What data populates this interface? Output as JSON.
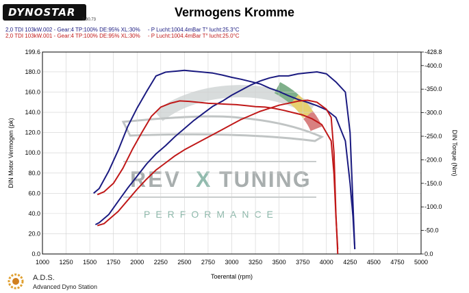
{
  "brand": {
    "logo_text": "DYNOSTAR",
    "version": "2.30.73"
  },
  "runs": [
    "2,0 TDI 103kW.002 - Gear:4 TP:100% DE:95% XL:30%     - P Lucht:1004.4mBar T° lucht:25.3°C",
    "2,0 TDI 103kW.001 - Gear:4 TP:100% DE:95% XL:30%     - P Lucht:1004.4mBar T° lucht:25.0°C"
  ],
  "watermark": {
    "main_left": "REV",
    "main_x": "X",
    "main_right": "TUNING",
    "sub": "PERFORMANCE"
  },
  "footer": {
    "name": "A.D.S.",
    "subtitle": "Advanced Dyno Station"
  },
  "colors": {
    "run1": "#1a1a80",
    "run2": "#c01818",
    "grid": "#d0d0d0",
    "watermark": "#9aa0a0"
  },
  "chart_data": {
    "type": "line",
    "title": "Vermogens Kromme",
    "xlabel": "Toerental (rpm)",
    "ylabel": "DIN Motor Vermogen (pk)",
    "y2label": "DIN Torque (Nm)",
    "xlim": [
      1000,
      5000
    ],
    "ylim": [
      0,
      199.6
    ],
    "y2lim": [
      0,
      428.8
    ],
    "x_ticks": [
      "1000",
      "1250",
      "1500",
      "1750",
      "2000",
      "2250",
      "2500",
      "2750",
      "3000",
      "3250",
      "3500",
      "3750",
      "4000",
      "4250",
      "4500",
      "4750",
      "5000"
    ],
    "y_ticks": [
      "0.0",
      "20.0",
      "40.0",
      "60.0",
      "80.0",
      "100.0",
      "120.0",
      "140.0",
      "160.0",
      "180.0",
      "199.6"
    ],
    "y2_ticks": [
      "0.0",
      "-50.0",
      "-100.0",
      "-150.0",
      "-200.0",
      "-250.0",
      "-300.0",
      "-350.0",
      "-400.0",
      "-428.8"
    ],
    "grid": true,
    "series": [
      {
        "name": "2,0 TDI 103kW.002",
        "measure": "power",
        "axis": "left",
        "color": "#1a1a80",
        "x": [
          1560,
          1600,
          1700,
          1800,
          1900,
          2000,
          2100,
          2200,
          2300,
          2400,
          2500,
          2600,
          2700,
          2800,
          2900,
          3000,
          3100,
          3200,
          3300,
          3400,
          3500,
          3600,
          3700,
          3800,
          3900,
          4000,
          4100,
          4200,
          4250,
          4280,
          4300
        ],
        "y": [
          29,
          31,
          39,
          52,
          65,
          77,
          89,
          99,
          107,
          116,
          124,
          132,
          139,
          146,
          151,
          157,
          162,
          167,
          171,
          174,
          176,
          176,
          178,
          179,
          180,
          178,
          170,
          160,
          120,
          50,
          5
        ]
      },
      {
        "name": "2,0 TDI 103kW.002",
        "measure": "torque",
        "axis": "right",
        "color": "#1a1a80",
        "x": [
          1540,
          1600,
          1700,
          1800,
          1900,
          2000,
          2100,
          2200,
          2300,
          2400,
          2500,
          2600,
          2700,
          2800,
          2900,
          3000,
          3100,
          3200,
          3300,
          3400,
          3500,
          3600,
          3700,
          3800,
          3900,
          4000,
          4100,
          4200,
          4250,
          4280,
          4300
        ],
        "y": [
          129,
          139,
          176,
          220,
          270,
          310,
          345,
          378,
          386,
          388,
          390,
          388,
          386,
          384,
          380,
          375,
          371,
          366,
          361,
          352,
          345,
          336,
          328,
          322,
          315,
          306,
          290,
          240,
          150,
          80,
          10
        ]
      },
      {
        "name": "2,0 TDI 103kW.001",
        "measure": "power",
        "axis": "left",
        "color": "#c01818",
        "x": [
          1580,
          1650,
          1700,
          1800,
          1900,
          2000,
          2100,
          2200,
          2300,
          2400,
          2500,
          2600,
          2700,
          2800,
          2900,
          3000,
          3100,
          3200,
          3300,
          3400,
          3500,
          3600,
          3700,
          3800,
          3900,
          4000,
          4050,
          4080,
          4100,
          4120
        ],
        "y": [
          28,
          30,
          34,
          42,
          53,
          64,
          74,
          83,
          90,
          97,
          103,
          108,
          113,
          118,
          123,
          128,
          133,
          137,
          141,
          144,
          147,
          149,
          151,
          152,
          150,
          143,
          135,
          100,
          40,
          0
        ]
      },
      {
        "name": "2,0 TDI 103kW.001",
        "measure": "torque",
        "axis": "right",
        "color": "#c01818",
        "x": [
          1580,
          1650,
          1750,
          1850,
          1950,
          2050,
          2150,
          2250,
          2350,
          2450,
          2550,
          2650,
          2750,
          2850,
          2950,
          3050,
          3150,
          3250,
          3350,
          3450,
          3550,
          3650,
          3750,
          3850,
          3950,
          4050,
          4080,
          4100,
          4120
        ],
        "y": [
          126,
          132,
          150,
          182,
          222,
          258,
          292,
          312,
          320,
          325,
          324,
          322,
          320,
          319,
          318,
          317,
          315,
          313,
          312,
          309,
          305,
          300,
          295,
          287,
          275,
          240,
          170,
          80,
          10
        ]
      }
    ]
  }
}
